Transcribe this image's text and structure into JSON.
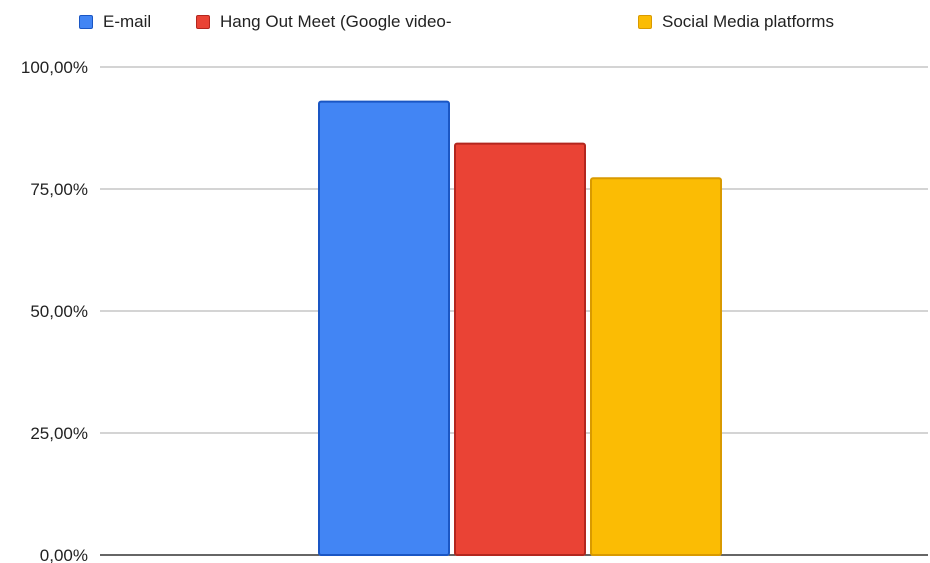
{
  "chart_data": {
    "type": "bar",
    "title": "",
    "xlabel": "",
    "ylabel": "",
    "categories": [
      ""
    ],
    "series": [
      {
        "name": "E-mail",
        "values": [
          92.9
        ],
        "color": "#4285f4",
        "border": "#1a56c4"
      },
      {
        "name": "Hang Out Meet (Google video-",
        "values": [
          84.3
        ],
        "color": "#ea4335",
        "border": "#b3261e"
      },
      {
        "name": "Social Media platforms",
        "values": [
          77.2
        ],
        "color": "#fbbc04",
        "border": "#d99a00"
      }
    ],
    "ylim": [
      0,
      100
    ],
    "yticks": [
      0,
      25,
      50,
      75,
      100
    ],
    "ytick_labels": [
      "0,00%",
      "25,00%",
      "50,00%",
      "75,00%",
      "100,00%"
    ],
    "grid": true,
    "legend_position": "top"
  }
}
